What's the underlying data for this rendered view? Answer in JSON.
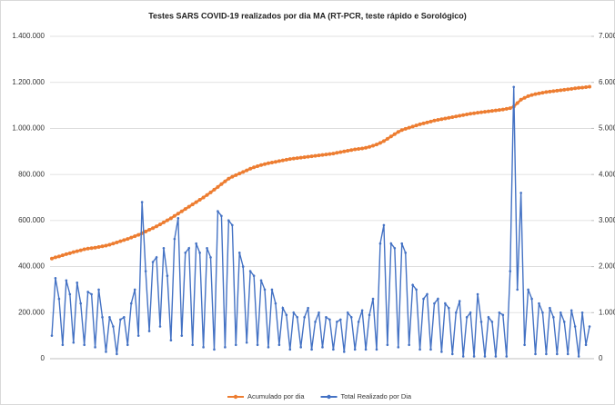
{
  "chart_data": {
    "type": "line",
    "title": "Testes SARS COVID-19 realizados por dia MA (RT-PCR, teste rápido e Sorológico)",
    "categories": [
      null,
      null,
      null,
      null,
      null,
      null,
      null,
      null,
      null,
      null,
      null,
      null,
      null,
      null,
      null,
      null,
      null,
      null,
      null,
      null,
      null,
      null,
      null,
      null,
      null,
      null,
      null,
      null,
      null,
      null,
      null,
      null,
      null,
      null,
      null,
      null,
      null,
      null,
      null,
      null,
      null,
      null,
      null,
      null,
      null,
      null,
      null,
      null,
      null,
      null,
      null,
      null,
      null,
      null,
      null,
      null,
      null,
      null,
      null,
      null,
      null,
      null,
      null,
      null,
      null,
      null,
      null,
      null,
      null,
      null,
      null,
      null,
      null,
      null,
      null,
      null,
      null,
      null,
      null,
      null,
      null,
      null,
      null,
      null,
      null,
      null,
      null,
      null,
      null,
      null,
      null,
      null,
      null,
      null,
      null,
      null,
      null,
      null,
      null,
      null,
      null,
      null,
      null,
      null,
      null,
      null,
      null,
      null,
      null,
      null,
      null,
      null,
      null,
      null,
      null,
      null,
      null,
      null,
      null,
      null,
      null,
      null,
      null,
      null,
      null,
      null,
      null,
      null,
      null,
      null,
      null,
      null,
      null,
      null,
      null,
      null,
      null,
      null,
      null,
      null,
      null,
      null,
      null,
      null,
      null,
      null,
      null,
      null,
      null,
      null
    ],
    "series": [
      {
        "name": "Acumulado por dia",
        "color": "#ed7d31",
        "axis": "y",
        "values": [
          435000,
          440000,
          444000,
          449000,
          454000,
          458000,
          463000,
          467000,
          471000,
          475000,
          478000,
          480000,
          482000,
          485000,
          488000,
          491000,
          495000,
          500000,
          505000,
          510000,
          515000,
          520000,
          526000,
          532000,
          538000,
          545000,
          552000,
          560000,
          567000,
          575000,
          583000,
          592000,
          601000,
          610000,
          620000,
          630000,
          640000,
          650000,
          660000,
          670000,
          680000,
          690000,
          700000,
          711000,
          722000,
          734000,
          746000,
          758000,
          770000,
          782000,
          790000,
          797000,
          804000,
          811000,
          818000,
          825000,
          831000,
          836000,
          841000,
          845000,
          849000,
          852000,
          855000,
          858000,
          861000,
          864000,
          867000,
          869000,
          871000,
          873000,
          875000,
          877000,
          879000,
          881000,
          883000,
          885000,
          887000,
          889000,
          891000,
          894000,
          897000,
          900000,
          903000,
          906000,
          909000,
          911000,
          913000,
          916000,
          920000,
          925000,
          930000,
          937000,
          945000,
          955000,
          965000,
          975000,
          985000,
          993000,
          998000,
          1003000,
          1008000,
          1013000,
          1018000,
          1022000,
          1026000,
          1030000,
          1034000,
          1037000,
          1040000,
          1043000,
          1046000,
          1049000,
          1052000,
          1055000,
          1058000,
          1061000,
          1064000,
          1066000,
          1068000,
          1070000,
          1072000,
          1074000,
          1076000,
          1078000,
          1080000,
          1082000,
          1085000,
          1088000,
          1095000,
          1110000,
          1125000,
          1133000,
          1140000,
          1145000,
          1149000,
          1152000,
          1155000,
          1158000,
          1160000,
          1162000,
          1164000,
          1166000,
          1168000,
          1170000,
          1172000,
          1174000,
          1176000,
          1177000,
          1179000,
          1181000
        ]
      },
      {
        "name": "Total Realizado por Dia",
        "color": "#4472c4",
        "axis": "y2",
        "values": [
          500,
          1750,
          1300,
          300,
          1700,
          1400,
          350,
          1650,
          1200,
          300,
          1450,
          1400,
          250,
          1500,
          900,
          150,
          900,
          700,
          100,
          850,
          900,
          300,
          1200,
          1500,
          500,
          3400,
          1900,
          600,
          2100,
          2200,
          700,
          2400,
          1800,
          400,
          2600,
          3050,
          500,
          2300,
          2400,
          300,
          2500,
          2300,
          250,
          2400,
          2200,
          200,
          3200,
          3100,
          250,
          3000,
          2900,
          300,
          2300,
          2000,
          350,
          1900,
          1800,
          300,
          1700,
          1500,
          250,
          1500,
          1200,
          300,
          1100,
          950,
          200,
          1000,
          900,
          250,
          900,
          1100,
          200,
          800,
          1000,
          250,
          900,
          850,
          200,
          800,
          850,
          150,
          1000,
          900,
          200,
          800,
          1050,
          200,
          950,
          1300,
          200,
          2500,
          2900,
          300,
          2500,
          2400,
          250,
          2500,
          2300,
          300,
          1600,
          1500,
          200,
          1300,
          1400,
          200,
          1200,
          1300,
          150,
          1200,
          1100,
          100,
          1000,
          1250,
          50,
          900,
          1000,
          50,
          1400,
          800,
          50,
          900,
          800,
          50,
          1000,
          950,
          50,
          1900,
          5900,
          1500,
          3600,
          300,
          1500,
          1300,
          100,
          1200,
          1000,
          100,
          1100,
          900,
          100,
          1000,
          800,
          100,
          1050,
          700,
          50,
          1000,
          300,
          700
        ]
      }
    ],
    "ylim": [
      0,
      1400000
    ],
    "yticks": [
      0,
      {
        "value": 200000,
        "label": "200.000"
      },
      {
        "value": 400000,
        "label": "400.000"
      },
      {
        "value": 600000,
        "label": "600.000"
      },
      {
        "value": 800000,
        "label": "800.000"
      },
      {
        "value": 1000000,
        "label": "1.000.000"
      },
      {
        "value": 1200000,
        "label": "1.200.000"
      },
      {
        "value": 1400000,
        "label": "1.400.000"
      }
    ],
    "y2lim": [
      0,
      7000
    ],
    "y2ticks": [
      0,
      {
        "value": 1000,
        "label": "1.000"
      },
      {
        "value": 2000,
        "label": "2.000"
      },
      {
        "value": 3000,
        "label": "3.000"
      },
      {
        "value": 4000,
        "label": "4.000"
      },
      {
        "value": 5000,
        "label": "5.000"
      },
      {
        "value": 6000,
        "label": "6.000"
      },
      {
        "value": 7000,
        "label": "7.000"
      }
    ],
    "grid": true,
    "legend": "bottom"
  }
}
